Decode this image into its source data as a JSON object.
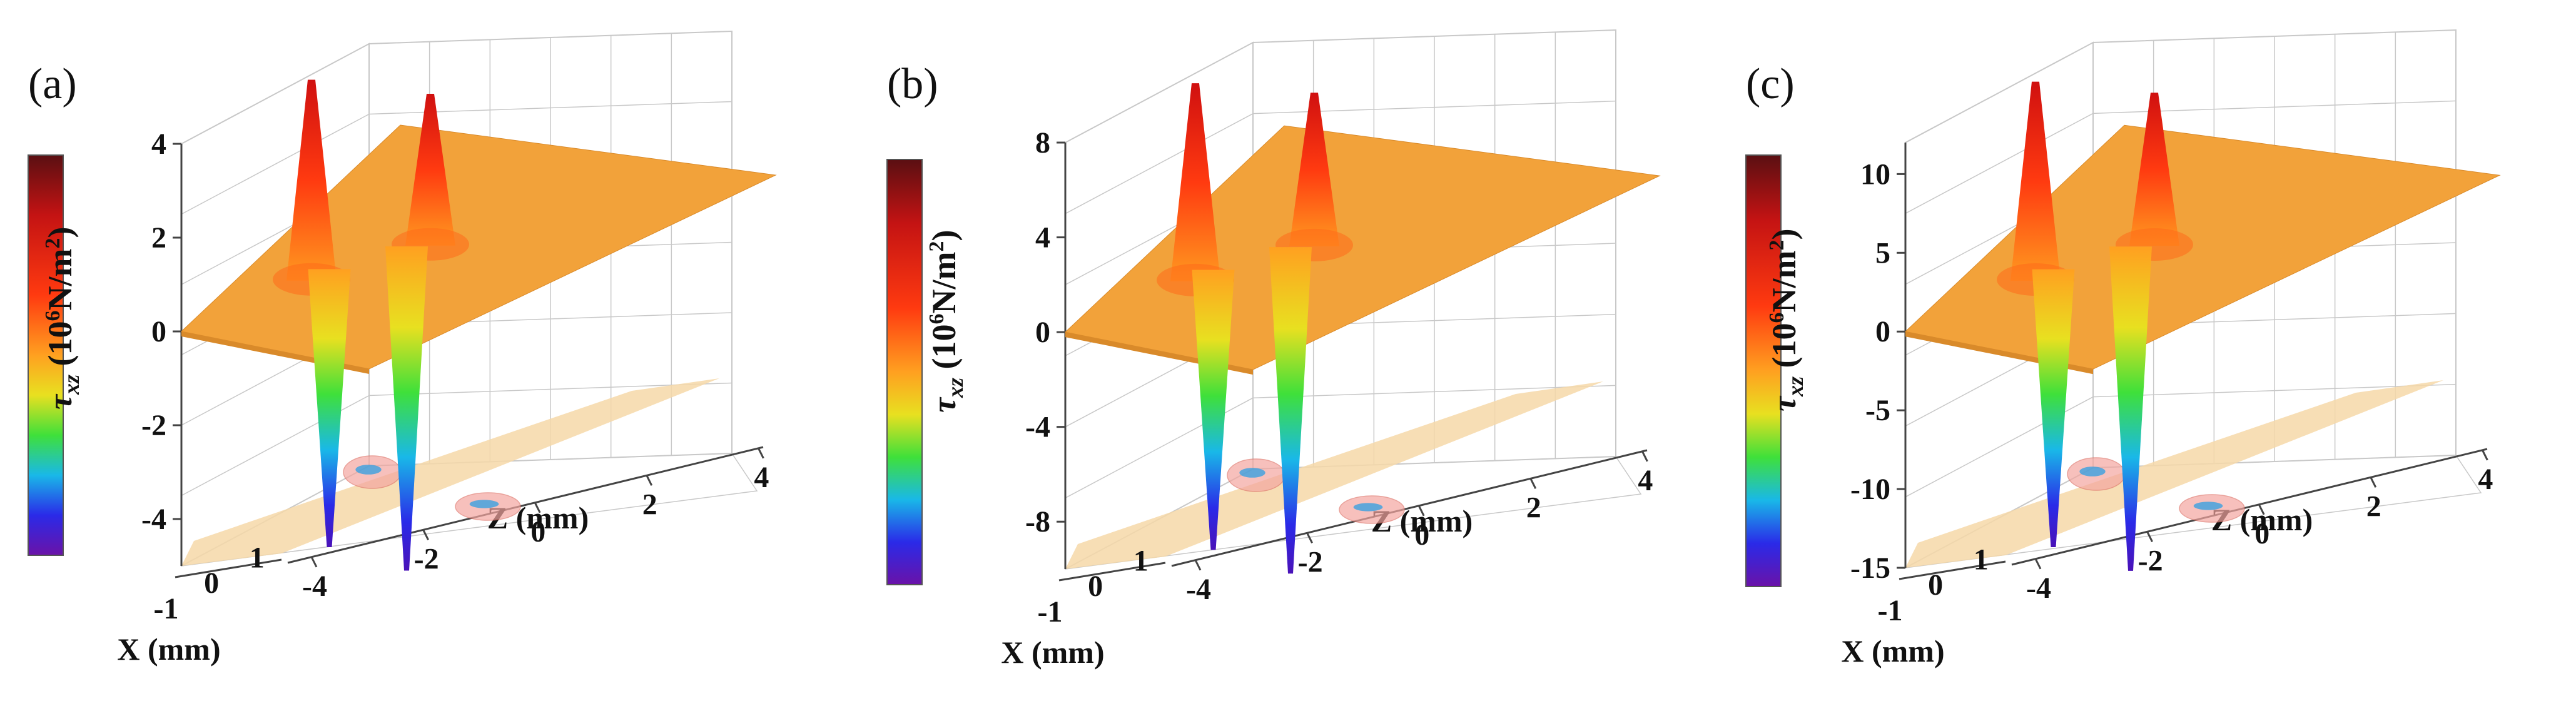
{
  "figure": {
    "unit_exponent": "6",
    "unit_rest": "N/m",
    "unit_power": "2",
    "tau_symbol": "τ",
    "tau_sub": "xz",
    "colors": {
      "plane": "#f2a23a",
      "plane_dark": "#d98a2a",
      "floor": "#f6d8a8",
      "grid": "#c8c8c8",
      "box": "#444444"
    }
  },
  "chart_data": [
    {
      "type": "surface3d",
      "label": "(a)",
      "title": "",
      "xlabel": "X (mm)",
      "zlabel": "Z (mm)",
      "ylabel": "τxz (10^6N/m^2)",
      "x_ticks": [
        "-1",
        "0",
        "1"
      ],
      "z_ticks": [
        "-4",
        "-2",
        "0",
        "2",
        "4"
      ],
      "y_ticks": [
        "4",
        "2",
        "0",
        "-2",
        "-4"
      ],
      "y_values": [
        4,
        2,
        0,
        -2,
        -4
      ],
      "ylim": [
        -5,
        4
      ],
      "peaks": [
        {
          "name": "left-positive-peak",
          "z": -1.6,
          "value": 3.9
        },
        {
          "name": "left-negative-peak",
          "z": -1.3,
          "value": -4.2
        },
        {
          "name": "right-positive-peak",
          "z": 0.4,
          "value": 3.6
        },
        {
          "name": "right-negative-peak",
          "z": 0.0,
          "value": -4.7
        }
      ]
    },
    {
      "type": "surface3d",
      "label": "(b)",
      "title": "",
      "xlabel": "X (mm)",
      "zlabel": "Z (mm)",
      "ylabel": "τxz (10^6N/m^2)",
      "x_ticks": [
        "-1",
        "0",
        "1"
      ],
      "z_ticks": [
        "-4",
        "-2",
        "0",
        "2",
        "4"
      ],
      "y_ticks": [
        "8",
        "4",
        "0",
        "-4",
        "-8"
      ],
      "y_values": [
        8,
        4,
        0,
        -4,
        -8
      ],
      "ylim": [
        -10,
        8
      ],
      "peaks": [
        {
          "name": "left-positive-peak",
          "z": -1.6,
          "value": 7.6
        },
        {
          "name": "left-negative-peak",
          "z": -1.3,
          "value": -8.4
        },
        {
          "name": "right-positive-peak",
          "z": 0.4,
          "value": 7.2
        },
        {
          "name": "right-negative-peak",
          "z": 0.0,
          "value": -9.4
        }
      ]
    },
    {
      "type": "surface3d",
      "label": "(c)",
      "title": "",
      "xlabel": "X (mm)",
      "zlabel": "Z (mm)",
      "ylabel": "τxz (10^6N/m^2)",
      "x_ticks": [
        "-1",
        "0",
        "1"
      ],
      "z_ticks": [
        "-4",
        "-2",
        "0",
        "2",
        "4"
      ],
      "y_ticks": [
        "10",
        "5",
        "0",
        "-5",
        "-10",
        "-15"
      ],
      "y_values": [
        10,
        5,
        0,
        -5,
        -10,
        -15
      ],
      "ylim": [
        -15,
        12
      ],
      "peaks": [
        {
          "name": "left-positive-peak",
          "z": -1.6,
          "value": 11.5
        },
        {
          "name": "left-negative-peak",
          "z": -1.3,
          "value": -12.5
        },
        {
          "name": "right-positive-peak",
          "z": 0.4,
          "value": 10.8
        },
        {
          "name": "right-negative-peak",
          "z": 0.0,
          "value": -14.0
        }
      ]
    }
  ]
}
